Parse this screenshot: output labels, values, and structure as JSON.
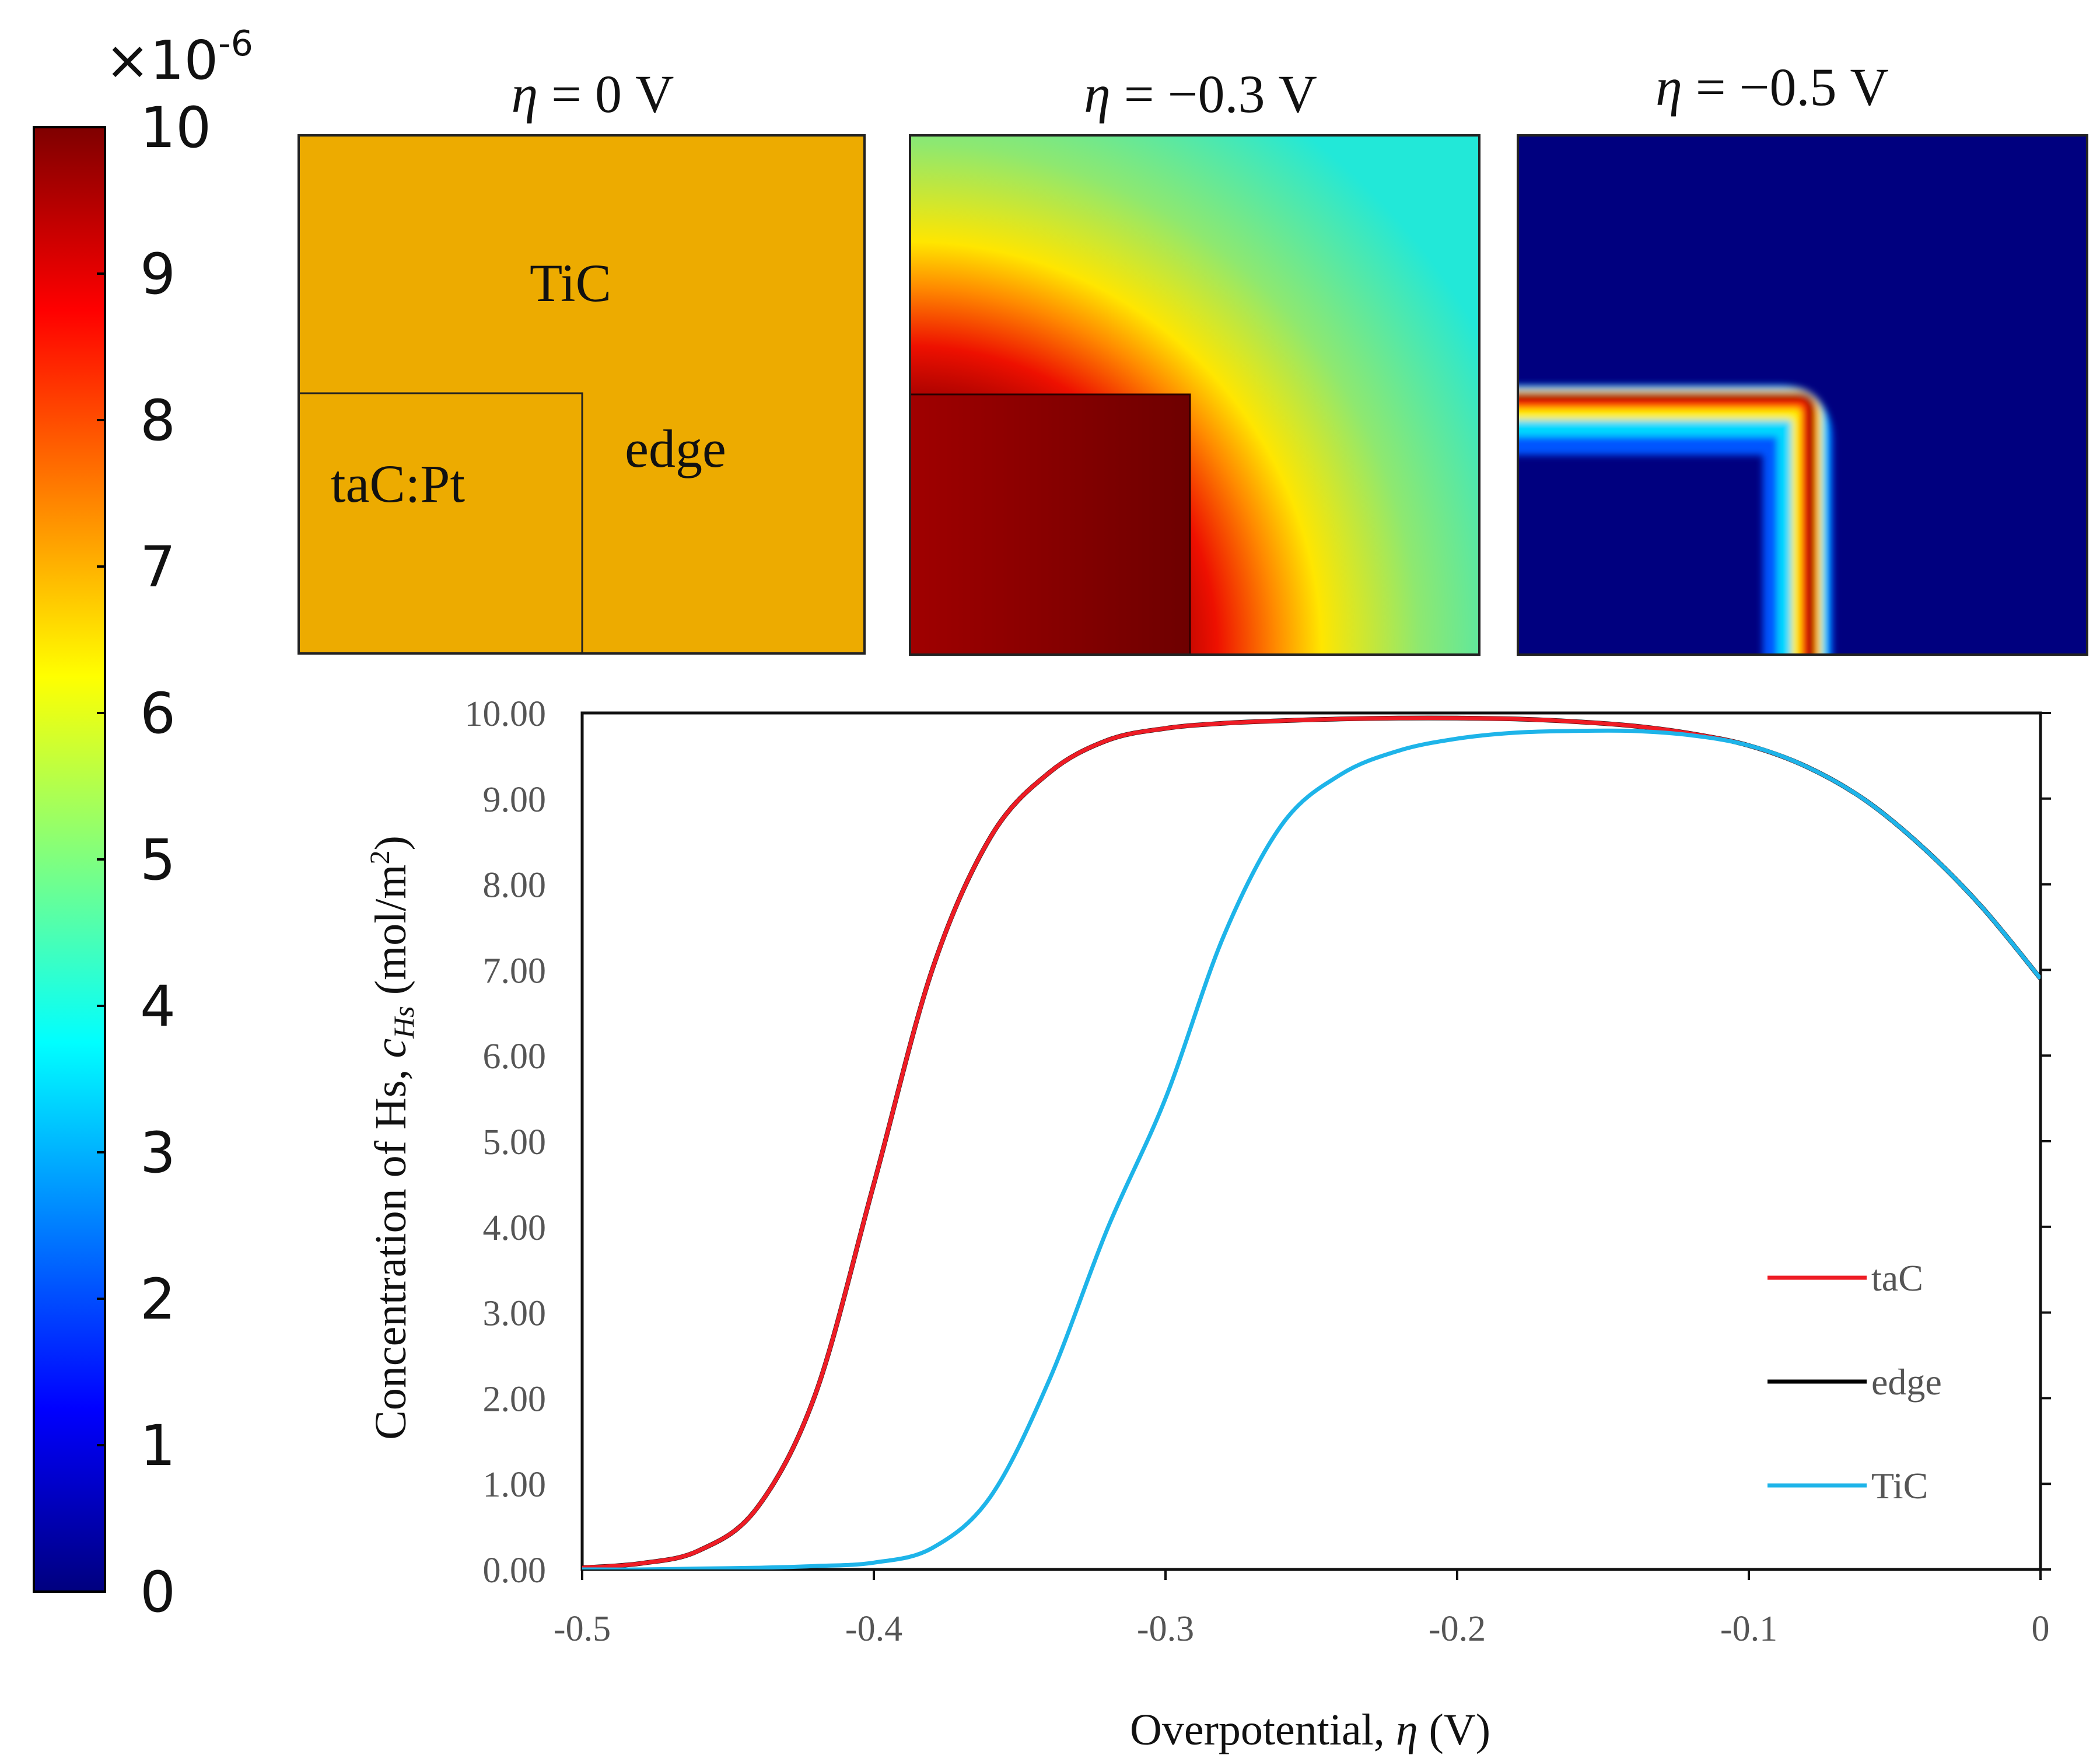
{
  "colorbar": {
    "exponent_label": "×10",
    "exponent_power": "-6",
    "ticks": [
      "0",
      "1",
      "2",
      "3",
      "4",
      "5",
      "6",
      "7",
      "8",
      "9",
      "10"
    ],
    "range": [
      0,
      10
    ],
    "colormap": [
      "#00007f",
      "#0000ff",
      "#007fff",
      "#00ffff",
      "#7fff7f",
      "#ffff00",
      "#ff7f00",
      "#ff0000",
      "#7f0000"
    ]
  },
  "panels": [
    {
      "title_symbol": "η",
      "title_value": " = 0 V",
      "labels": {
        "tic": "TiC",
        "tac": "taC:Pt",
        "edge": "edge"
      },
      "fill": "#edab00"
    },
    {
      "title_symbol": "η",
      "title_value": " = −0.3 V"
    },
    {
      "title_symbol": "η",
      "title_value": " = −0.5 V"
    }
  ],
  "chart_data": {
    "type": "line",
    "x": [
      -0.5,
      -0.48,
      -0.46,
      -0.44,
      -0.42,
      -0.4,
      -0.38,
      -0.36,
      -0.34,
      -0.32,
      -0.3,
      -0.28,
      -0.26,
      -0.24,
      -0.22,
      -0.2,
      -0.18,
      -0.16,
      -0.14,
      -0.12,
      -0.1,
      -0.08,
      -0.06,
      -0.04,
      -0.02,
      0.0
    ],
    "series": [
      {
        "name": "taC",
        "color": "#ee1c25",
        "values": [
          0.02,
          0.07,
          0.22,
          0.72,
          2.05,
          4.5,
          7.0,
          8.55,
          9.3,
          9.68,
          9.82,
          9.88,
          9.91,
          9.93,
          9.94,
          9.94,
          9.93,
          9.9,
          9.85,
          9.76,
          9.62,
          9.37,
          8.98,
          8.42,
          7.73,
          6.9
        ]
      },
      {
        "name": "edge",
        "color": "#000000",
        "values": [
          0.02,
          0.07,
          0.22,
          0.72,
          2.05,
          4.5,
          7.0,
          8.55,
          9.3,
          9.68,
          9.82,
          9.88,
          9.91,
          9.93,
          9.94,
          9.94,
          9.93,
          9.9,
          9.85,
          9.76,
          9.62,
          9.37,
          8.98,
          8.42,
          7.73,
          6.9
        ]
      },
      {
        "name": "TiC",
        "color": "#1eb4e9",
        "values": [
          0.0,
          0.0,
          0.01,
          0.02,
          0.04,
          0.08,
          0.25,
          0.85,
          2.2,
          3.97,
          5.5,
          7.4,
          8.7,
          9.28,
          9.56,
          9.7,
          9.77,
          9.79,
          9.79,
          9.74,
          9.62,
          9.37,
          8.98,
          8.42,
          7.73,
          6.9
        ]
      }
    ],
    "x_ticks": [
      "-0.5",
      "-0.4",
      "-0.3",
      "-0.2",
      "-0.1",
      "0"
    ],
    "x_tick_values": [
      -0.5,
      -0.4,
      -0.3,
      -0.2,
      -0.1,
      0
    ],
    "y_ticks": [
      "0.00",
      "1.00",
      "2.00",
      "3.00",
      "4.00",
      "5.00",
      "6.00",
      "7.00",
      "8.00",
      "9.00",
      "10.00"
    ],
    "y_tick_values": [
      0,
      1,
      2,
      3,
      4,
      5,
      6,
      7,
      8,
      9,
      10
    ],
    "xlim": [
      -0.5,
      0
    ],
    "ylim": [
      0,
      10
    ],
    "xlabel_text": "Overpotential, ",
    "xlabel_symbol": "η",
    "xlabel_unit": " (V)",
    "ylabel_text": "Concentration of Hs, ",
    "ylabel_symbol": "c",
    "ylabel_subscript": "Hs",
    "ylabel_unit": " (mol/m",
    "ylabel_unit_power": "2",
    "ylabel_unit_close": ")",
    "legend": [
      "taC",
      "edge",
      "TiC"
    ],
    "legend_position": "lower-right"
  }
}
